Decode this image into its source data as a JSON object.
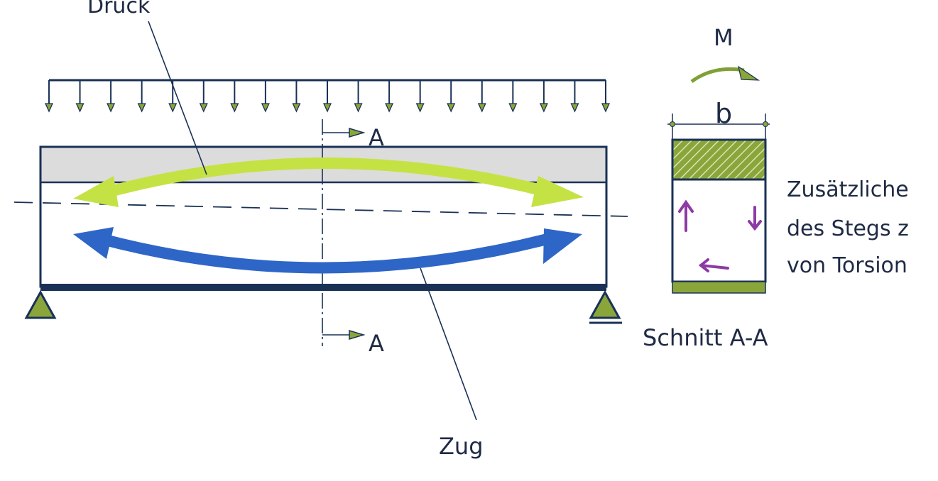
{
  "labels": {
    "compression": "Druck",
    "tension": "Zug",
    "section_top": "A",
    "section_bottom": "A",
    "moment": "M",
    "width": "b",
    "section_caption": "Schnitt A-A",
    "note_line1": "Zusätzliche",
    "note_line2": "des Stegs z",
    "note_line3": "von Torsion"
  },
  "load": {
    "arrow_count": 19
  },
  "colors": {
    "outline": "#1a3156",
    "support": "#8aa63a",
    "compression_arrow": "#c5e245",
    "tension_arrow": "#2e66c7",
    "compression_zone": "#dcdcdc",
    "torsion_marks": "#8e3aa5",
    "moment_arrow": "#7fa038",
    "text": "#1f2a44"
  }
}
